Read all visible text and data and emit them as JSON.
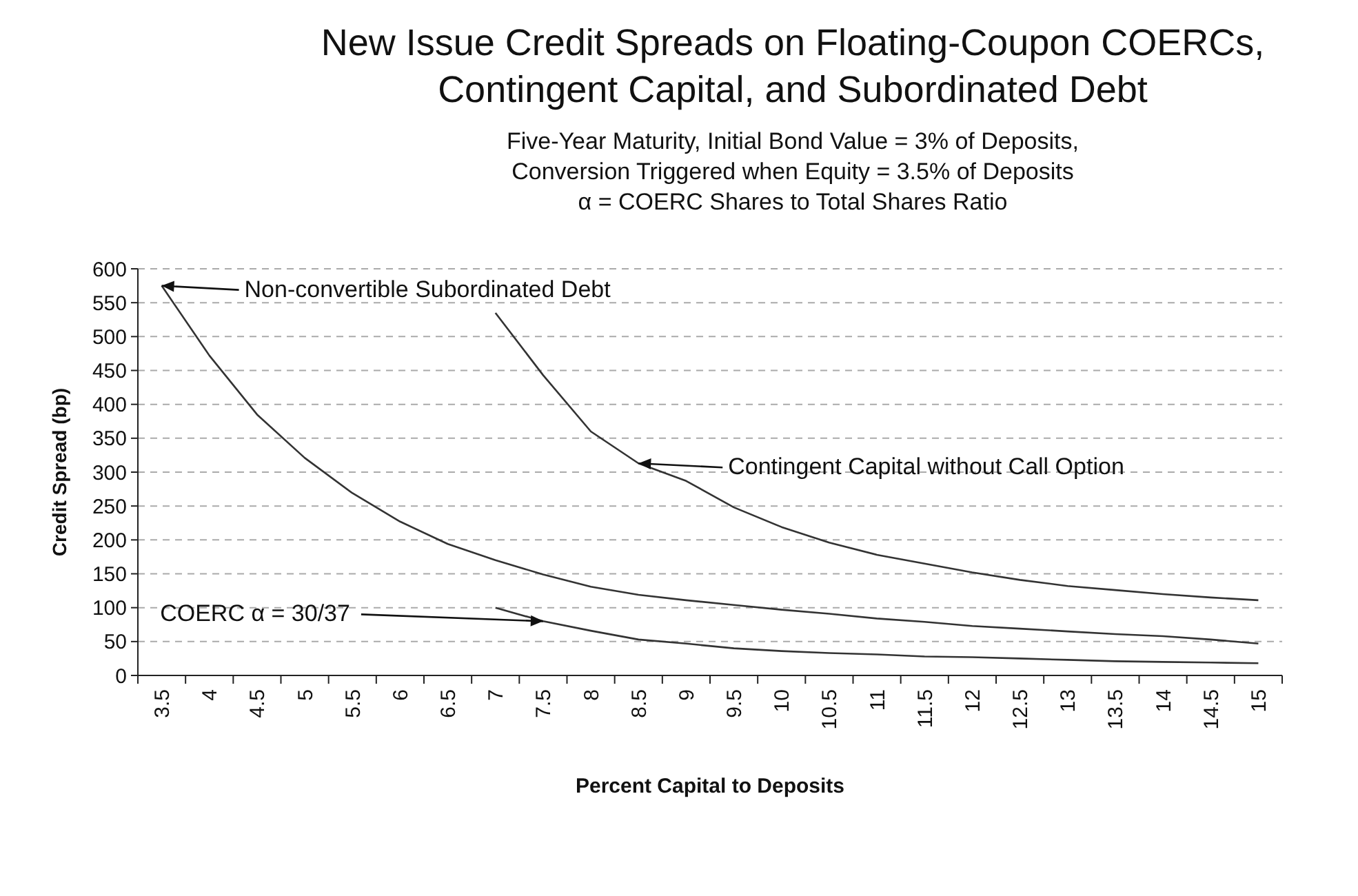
{
  "chart_data": {
    "type": "line",
    "title": "New Issue Credit Spreads on Floating-Coupon COERCs, Contingent Capital, and Subordinated Debt",
    "subtitle": "Five-Year Maturity, Initial Bond Value = 3% of Deposits,\nConversion Triggered when Equity = 3.5% of Deposits\nα = COERC Shares to Total Shares Ratio",
    "xlabel": "Percent Capital to Deposits",
    "ylabel": "Credit Spread (bp)",
    "categories": [
      "3.5",
      "4",
      "4.5",
      "5",
      "5.5",
      "6",
      "6.5",
      "7",
      "7.5",
      "8",
      "8.5",
      "9",
      "9.5",
      "10",
      "10.5",
      "11",
      "11.5",
      "12",
      "12.5",
      "13",
      "13.5",
      "14",
      "14.5",
      "15"
    ],
    "series": [
      {
        "color": "#333333",
        "values": [
          575,
          472,
          385,
          321,
          269,
          227,
          194,
          170,
          149,
          131,
          119,
          111,
          104,
          97,
          91,
          84,
          79,
          73,
          69,
          65,
          61,
          58,
          53,
          47
        ]
      },
      {
        "color": "#333333",
        "values": [
          null,
          null,
          null,
          null,
          null,
          null,
          null,
          535,
          443,
          360,
          313,
          287,
          248,
          219,
          196,
          178,
          165,
          152,
          141,
          132,
          126,
          120,
          115,
          111
        ]
      },
      {
        "color": "#333333",
        "values": [
          null,
          null,
          null,
          null,
          null,
          null,
          null,
          100,
          80,
          66,
          53,
          47,
          40,
          36,
          33,
          31,
          28,
          27,
          25,
          23,
          21,
          20,
          19,
          18
        ]
      }
    ],
    "annotations": [
      {
        "text": "Non-convertible Subordinated Debt",
        "x": "3.5",
        "y": 575
      },
      {
        "text": "Contingent Capital without Call Option",
        "x": "8.5",
        "y": 313
      },
      {
        "text": "COERC α = 30/37",
        "x": "7.5",
        "y": 80
      }
    ],
    "ylim": [
      0,
      600
    ],
    "yticks": [
      0,
      50,
      100,
      150,
      200,
      250,
      300,
      350,
      400,
      450,
      500,
      550,
      600
    ],
    "grid": "y",
    "line_style": "solid",
    "marker": "none"
  }
}
